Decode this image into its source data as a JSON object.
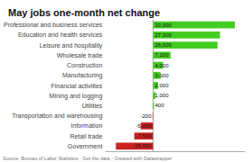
{
  "chart_data": {
    "type": "bar",
    "orientation": "horizontal",
    "title": "May jobs one-month net change",
    "categories": [
      "Professional and business services",
      "Education and health services",
      "Leisure and hospitality",
      "Wholesale trade",
      "Construction",
      "Manufacturing",
      "Financial activities",
      "Mining and logging",
      "Utilities",
      "Transportation and warehousing",
      "Information",
      "Retail trade",
      "Government"
    ],
    "values": [
      33000,
      27000,
      26000,
      7100,
      4000,
      3000,
      2000,
      1000,
      400,
      -200,
      -5000,
      -7600,
      -15000
    ],
    "value_labels": [
      "33,000",
      "27,000",
      "26,000",
      "7,100",
      "4,000",
      "3,000",
      "2,000",
      "1,000",
      "400",
      "-200",
      "-5,000",
      "-7,600",
      "-15,000"
    ],
    "colors": [
      "#44cc22",
      "#44cc22",
      "#44cc22",
      "#44cc22",
      "#44cc22",
      "#44cc22",
      "#44cc22",
      "#44cc22",
      "#44cc22",
      "#cc2222",
      "#cc2222",
      "#cc2222",
      "#cc2222"
    ],
    "xlim": [
      -19000,
      37000
    ],
    "grid": false,
    "data_labels": true,
    "tick_labels": "y",
    "source": "Source: Bureau of Labor Statistics · Get the data · Created with Datawrapper"
  }
}
